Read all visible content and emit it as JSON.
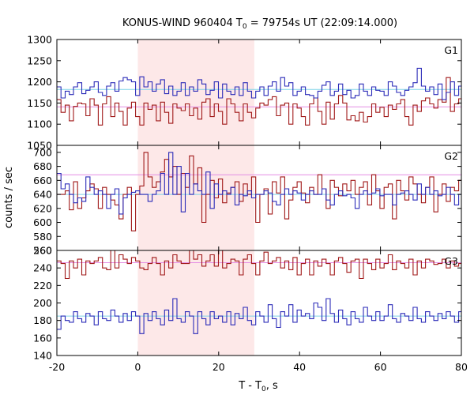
{
  "chart_data": {
    "type": "line",
    "title": "KONUS-WIND 960404 T",
    "title_sub": "0",
    "title_rest": " = 79754s UT (22:09:14.000)",
    "xlabel": "T - T",
    "xlabel_sub": "0",
    "xlabel_rest": ", s",
    "ylabel": "counts / sec",
    "xlim": [
      -20,
      80
    ],
    "x_ticks": [
      "-20",
      "0",
      "20",
      "40",
      "60",
      "80"
    ],
    "x_tick_values": [
      -20,
      0,
      20,
      40,
      60,
      80
    ],
    "highlight": {
      "x_start": 0,
      "x_end": 28.8,
      "color": "#fde8e8"
    },
    "bin_width": 1.024,
    "colors": {
      "red": "#a01818",
      "blue": "#2b2bb8",
      "red_mean": "#e48ee4",
      "blue_mean": "#7fd3e8"
    },
    "panels": [
      {
        "label": "G1",
        "ylim": [
          1050,
          1300
        ],
        "y_ticks": [
          "1050",
          "1100",
          "1150",
          "1200",
          "1250",
          "1300"
        ],
        "y_tick_values": [
          1050,
          1100,
          1150,
          1200,
          1250,
          1300
        ],
        "red_mean": 1141,
        "blue_mean": 1182,
        "series": [
          {
            "name": "",
            "color": "red",
            "values": [
              1158,
              1128,
              1145,
              1108,
              1142,
              1150,
              1148,
              1120,
              1160,
              1145,
              1098,
              1148,
              1165,
              1118,
              1150,
              1130,
              1098,
              1138,
              1152,
              1118,
              1098,
              1150,
              1135,
              1145,
              1108,
              1152,
              1128,
              1102,
              1148,
              1138,
              1132,
              1148,
              1120,
              1138,
              1112,
              1152,
              1160,
              1118,
              1148,
              1130,
              1100,
              1160,
              1148,
              1128,
              1108,
              1148,
              1128,
              1115,
              1138,
              1150,
              1145,
              1158,
              1165,
              1120,
              1145,
              1150,
              1100,
              1148,
              1138,
              1118,
              1098,
              1148,
              1162,
              1130,
              1100,
              1152,
              1112,
              1148,
              1168,
              1150,
              1110,
              1120,
              1108,
              1128,
              1105,
              1118,
              1148,
              1128,
              1140,
              1118,
              1145,
              1135,
              1148,
              1158,
              1118,
              1098,
              1145,
              1130,
              1155,
              1162,
              1148,
              1138,
              1158,
              1152,
              1210,
              1130,
              1148,
              1160,
              1112
            ]
          },
          {
            "name": "",
            "color": "blue",
            "values": [
              1188,
              1162,
              1178,
              1170,
              1188,
              1198,
              1172,
              1180,
              1188,
              1200,
              1175,
              1168,
              1190,
              1198,
              1178,
              1202,
              1210,
              1205,
              1200,
              1168,
              1212,
              1188,
              1200,
              1178,
              1195,
              1205,
              1172,
              1190,
              1168,
              1178,
              1198,
              1168,
              1188,
              1178,
              1205,
              1195,
              1170,
              1180,
              1200,
              1162,
              1195,
              1178,
              1170,
              1188,
              1168,
              1198,
              1178,
              1162,
              1178,
              1188,
              1168,
              1190,
              1200,
              1178,
              1210,
              1190,
              1198,
              1168,
              1178,
              1188,
              1170,
              1168,
              1162,
              1178,
              1192,
              1200,
              1168,
              1178,
              1195,
              1170,
              1180,
              1162,
              1168,
              1195,
              1178,
              1168,
              1188,
              1180,
              1178,
              1168,
              1200,
              1190,
              1175,
              1168,
              1180,
              1188,
              1198,
              1232,
              1190,
              1178,
              1188,
              1170,
              1195,
              1158,
              1175,
              1200,
              1168,
              1190,
              1168
            ]
          }
        ]
      },
      {
        "label": "G2",
        "ylim": [
          560,
          710
        ],
        "y_ticks": [
          "560",
          "580",
          "600",
          "620",
          "640",
          "660",
          "680",
          "700"
        ],
        "y_tick_values": [
          560,
          580,
          600,
          620,
          640,
          660,
          680,
          700
        ],
        "red_mean": 668,
        "blue_mean": 640,
        "series": [
          {
            "name": "",
            "color": "red",
            "values": [
              640,
              640,
              645,
              618,
              658,
              620,
              635,
              645,
              655,
              648,
              620,
              650,
              640,
              632,
              625,
              605,
              640,
              650,
              588,
              640,
              652,
              700,
              665,
              650,
              658,
              672,
              690,
              665,
              680,
              640,
              670,
              650,
              695,
              655,
              678,
              600,
              640,
              660,
              635,
              662,
              628,
              642,
              650,
              658,
              630,
              655,
              640,
              665,
              600,
              640,
              648,
              612,
              658,
              642,
              665,
              605,
              632,
              650,
              658,
              642,
              628,
              650,
              640,
              668,
              648,
              620,
              660,
              650,
              638,
              655,
              645,
              660,
              640,
              650,
              658,
              625,
              668,
              645,
              620,
              650,
              655,
              605,
              660,
              645,
              632,
              665,
              655,
              640,
              628,
              650,
              665,
              615,
              640,
              655,
              630,
              650,
              645,
              660,
              652
            ]
          },
          {
            "name": "",
            "color": "blue",
            "values": [
              670,
              648,
              655,
              640,
              628,
              635,
              630,
              665,
              650,
              640,
              645,
              640,
              620,
              640,
              648,
              612,
              635,
              640,
              643,
              645,
              640,
              640,
              630,
              640,
              645,
              670,
              640,
              700,
              640,
              680,
              615,
              670,
              640,
              655,
              645,
              640,
              672,
              620,
              655,
              640,
              645,
              640,
              650,
              625,
              640,
              638,
              645,
              635,
              640,
              640,
              645,
              642,
              630,
              625,
              640,
              648,
              640,
              645,
              642,
              632,
              640,
              645,
              640,
              640,
              648,
              632,
              625,
              640,
              645,
              638,
              640,
              635,
              620,
              640,
              645,
              640,
              642,
              648,
              638,
              640,
              640,
              625,
              640,
              642,
              645,
              640,
              632,
              655,
              640,
              650,
              640,
              645,
              638,
              640,
              650,
              640,
              625,
              640,
              640
            ]
          }
        ]
      },
      {
        "label": "G3",
        "ylim": [
          140,
          260
        ],
        "y_ticks": [
          "140",
          "160",
          "180",
          "200",
          "220",
          "240",
          "260"
        ],
        "y_tick_values": [
          140,
          160,
          180,
          200,
          220,
          240,
          260
        ],
        "red_mean": 246,
        "blue_mean": 185,
        "series": [
          {
            "name": "",
            "color": "red",
            "values": [
              248,
              245,
              228,
              248,
              240,
              250,
              232,
              248,
              245,
              248,
              252,
              240,
              238,
              265,
              240,
              255,
              250,
              245,
              252,
              248,
              240,
              238,
              245,
              252,
              245,
              232,
              248,
              240,
              255,
              248,
              245,
              245,
              262,
              250,
              255,
              242,
              248,
              255,
              242,
              268,
              240,
              245,
              250,
              248,
              232,
              250,
              255,
              245,
              232,
              248,
              258,
              245,
              248,
              252,
              240,
              248,
              238,
              252,
              232,
              245,
              250,
              232,
              248,
              242,
              250,
              245,
              232,
              248,
              252,
              245,
              235,
              248,
              250,
              228,
              250,
              245,
              238,
              250,
              240,
              245,
              255,
              238,
              248,
              245,
              240,
              250,
              232,
              248,
              240,
              250,
              248,
              244,
              245,
              250,
              240,
              248,
              242,
              245,
              240
            ]
          },
          {
            "name": "",
            "color": "blue",
            "values": [
              170,
              185,
              180,
              178,
              190,
              182,
              178,
              188,
              185,
              175,
              190,
              182,
              180,
              192,
              185,
              178,
              188,
              180,
              190,
              185,
              165,
              188,
              180,
              190,
              182,
              175,
              192,
              180,
              205,
              182,
              178,
              190,
              185,
              165,
              190,
              182,
              175,
              190,
              182,
              185,
              178,
              190,
              175,
              188,
              182,
              195,
              180,
              175,
              190,
              185,
              178,
              198,
              182,
              172,
              190,
              185,
              198,
              178,
              192,
              185,
              188,
              182,
              200,
              195,
              180,
              205,
              188,
              178,
              192,
              182,
              175,
              190,
              182,
              178,
              195,
              185,
              180,
              190,
              180,
              185,
              198,
              182,
              178,
              188,
              185,
              180,
              195,
              182,
              178,
              190,
              185,
              180,
              188,
              182,
              190,
              185,
              178,
              190,
              185
            ]
          }
        ]
      }
    ]
  }
}
